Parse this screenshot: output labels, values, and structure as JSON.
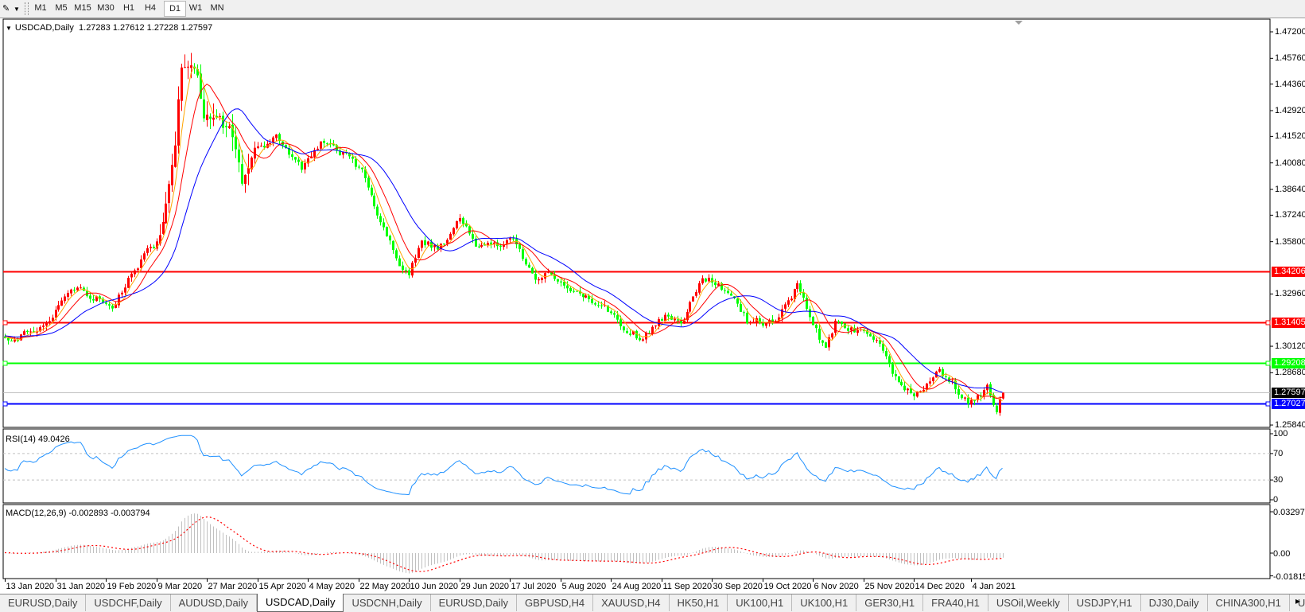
{
  "toolbar": {
    "timeframes": [
      "M1",
      "M5",
      "M15",
      "M30",
      "H1",
      "H4",
      "D1",
      "W1",
      "MN"
    ],
    "active_timeframe": "D1"
  },
  "chart": {
    "symbol": "USDCAD,Daily",
    "ohlc": "1.27283 1.27612 1.27228 1.27597",
    "last_bar": {
      "date": "2021-01-15",
      "open": 1.27283,
      "high": 1.27612,
      "low": 1.27228,
      "close": 1.27597
    },
    "price_axis_labels": [
      "1.47200",
      "1.45760",
      "1.44360",
      "1.42920",
      "1.41520",
      "1.40080",
      "1.38640",
      "1.37240",
      "1.35800",
      "1.32960",
      "1.30120",
      "1.28680",
      "1.25840"
    ],
    "horizontal_lines": [
      {
        "price": "1.34206",
        "color": "#ff0000"
      },
      {
        "price": "1.31405",
        "color": "#ff0000"
      },
      {
        "price": "1.29208",
        "color": "#00ff00"
      },
      {
        "price": "1.27027",
        "color": "#0000ff"
      }
    ],
    "current_price": "1.27597",
    "date_labels": [
      {
        "date": "2020-01-13",
        "label": "13 Jan 2020"
      },
      {
        "date": "2020-01-31",
        "label": "31 Jan 2020"
      },
      {
        "date": "2020-02-19",
        "label": "19 Feb 2020"
      },
      {
        "date": "2020-03-09",
        "label": "9 Mar 2020"
      },
      {
        "date": "2020-03-27",
        "label": "27 Mar 2020"
      },
      {
        "date": "2020-04-15",
        "label": "15 Apr 2020"
      },
      {
        "date": "2020-05-04",
        "label": "4 May 2020"
      },
      {
        "date": "2020-05-22",
        "label": "22 May 2020"
      },
      {
        "date": "2020-06-10",
        "label": "10 Jun 2020"
      },
      {
        "date": "2020-06-29",
        "label": "29 Jun 2020"
      },
      {
        "date": "2020-07-17",
        "label": "17 Jul 2020"
      },
      {
        "date": "2020-08-05",
        "label": "5 Aug 2020"
      },
      {
        "date": "2020-08-24",
        "label": "24 Aug 2020"
      },
      {
        "date": "2020-09-11",
        "label": "11 Sep 2020"
      },
      {
        "date": "2020-09-30",
        "label": "30 Sep 2020"
      },
      {
        "date": "2020-10-19",
        "label": "19 Oct 2020"
      },
      {
        "date": "2020-11-06",
        "label": "6 Nov 2020"
      },
      {
        "date": "2020-11-25",
        "label": "25 Nov 2020"
      },
      {
        "date": "2020-12-14",
        "label": "14 Dec 2020"
      },
      {
        "date": "2021-01-04",
        "label": "4 Jan 2021"
      }
    ],
    "close_path": [
      [
        "2020-01-13",
        1.306
      ],
      [
        "2020-01-24",
        1.312
      ],
      [
        "2020-02-09",
        1.331
      ],
      [
        "2020-02-21",
        1.324
      ],
      [
        "2020-03-01",
        1.342
      ],
      [
        "2020-03-09",
        1.358
      ],
      [
        "2020-03-13",
        1.38
      ],
      [
        "2020-03-17",
        1.43
      ],
      [
        "2020-03-19",
        1.455
      ],
      [
        "2020-03-24",
        1.446
      ],
      [
        "2020-03-26",
        1.416
      ],
      [
        "2020-04-01",
        1.423
      ],
      [
        "2020-04-09",
        1.396
      ],
      [
        "2020-04-16",
        1.405
      ],
      [
        "2020-04-22",
        1.416
      ],
      [
        "2020-05-01",
        1.396
      ],
      [
        "2020-05-08",
        1.41
      ],
      [
        "2020-05-17",
        1.407
      ],
      [
        "2020-05-23",
        1.394
      ],
      [
        "2020-06-01",
        1.367
      ],
      [
        "2020-06-06",
        1.346
      ],
      [
        "2020-06-10",
        1.34
      ],
      [
        "2020-06-15",
        1.358
      ],
      [
        "2020-06-21",
        1.355
      ],
      [
        "2020-06-29",
        1.369
      ],
      [
        "2020-07-05",
        1.358
      ],
      [
        "2020-07-14",
        1.358
      ],
      [
        "2020-07-20",
        1.356
      ],
      [
        "2020-07-27",
        1.34
      ],
      [
        "2020-08-05",
        1.338
      ],
      [
        "2020-08-15",
        1.326
      ],
      [
        "2020-08-24",
        1.319
      ],
      [
        "2020-09-03",
        1.306
      ],
      [
        "2020-09-11",
        1.317
      ],
      [
        "2020-09-20",
        1.317
      ],
      [
        "2020-09-26",
        1.34
      ],
      [
        "2020-10-01",
        1.335
      ],
      [
        "2020-10-07",
        1.331
      ],
      [
        "2020-10-13",
        1.315
      ],
      [
        "2020-10-22",
        1.315
      ],
      [
        "2020-11-01",
        1.335
      ],
      [
        "2020-11-05",
        1.315
      ],
      [
        "2020-11-11",
        1.299
      ],
      [
        "2020-11-14",
        1.313
      ],
      [
        "2020-11-25",
        1.308
      ],
      [
        "2020-12-02",
        1.299
      ],
      [
        "2020-12-08",
        1.279
      ],
      [
        "2020-12-16",
        1.276
      ],
      [
        "2020-12-22",
        1.29
      ],
      [
        "2020-12-28",
        1.281
      ],
      [
        "2021-01-03",
        1.272
      ],
      [
        "2021-01-09",
        1.279
      ],
      [
        "2021-01-13",
        1.267
      ],
      [
        "2021-01-15",
        1.27597
      ]
    ],
    "colors": {
      "bull_candle": "#ff0000",
      "bear_candle": "#00ff00",
      "ma_fast": "#ffa500",
      "ma_medium": "#ff0000",
      "ma_slow": "#0000ff",
      "current_price_line": "#c0c0c0",
      "current_price_tag": "#000000"
    }
  },
  "rsi": {
    "label": "RSI(14) 49.0426",
    "levels": [
      "100",
      "70",
      "30",
      "0"
    ],
    "color": "#1e90ff"
  },
  "macd": {
    "label": "MACD(12,26,9) -0.002893 -0.003794",
    "axis_labels": [
      "0.032972",
      "0.00",
      "-0.018154"
    ],
    "histogram_color": "#c0c0c0",
    "signal_color": "#ff0000"
  },
  "tabs": [
    "EURUSD,Daily",
    "USDCHF,Daily",
    "AUDUSD,Daily",
    "USDCAD,Daily",
    "USDCNH,Daily",
    "EURUSD,Daily",
    "GBPUSD,H4",
    "XAUUSD,H4",
    "HK50,H1",
    "UK100,H1",
    "UK100,H1",
    "GER30,H1",
    "FRA40,H1",
    "USOil,Weekly",
    "USDJPY,H1",
    "DJ30,Daily",
    "CHINA300,H1",
    "USOil,"
  ],
  "active_tab": "USDCAD,Daily"
}
